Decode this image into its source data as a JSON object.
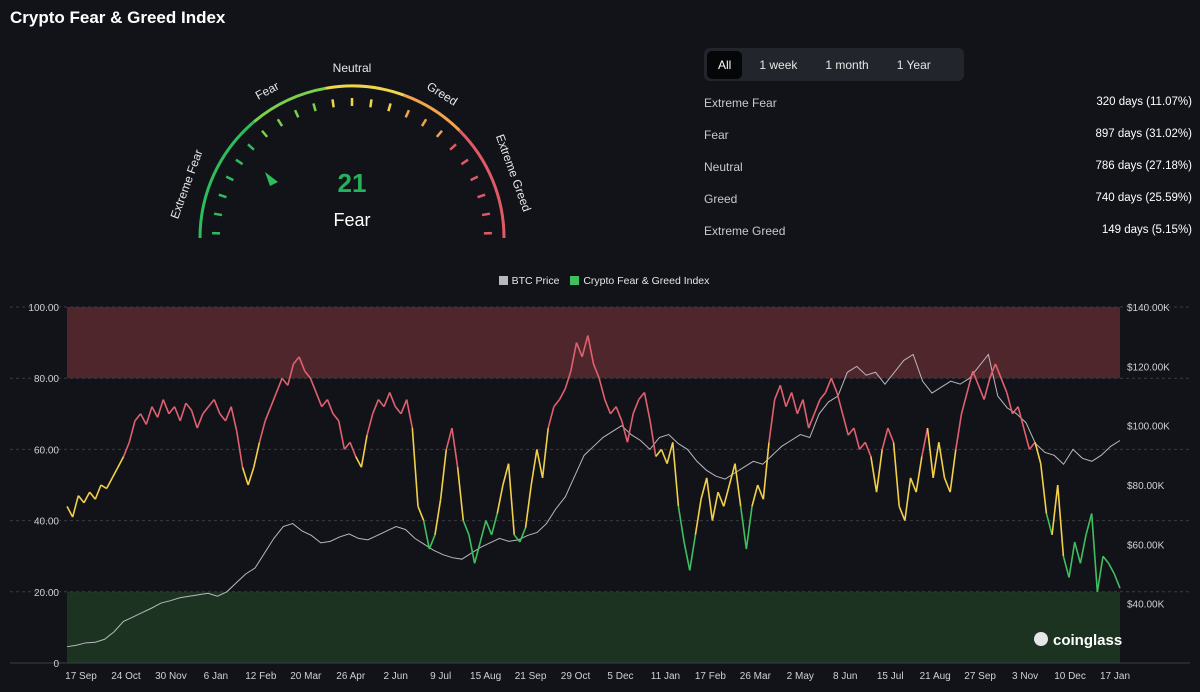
{
  "page": {
    "title": "Crypto Fear & Greed Index"
  },
  "gauge": {
    "value": "21",
    "classification": "Fear",
    "zones": [
      "Extreme Fear",
      "Fear",
      "Neutral",
      "Greed",
      "Extreme Greed"
    ],
    "colors": {
      "extreme_fear": "#2ebd5d",
      "fear": "#7ccf4a",
      "neutral": "#f0d54a",
      "greed": "#f2a34c",
      "extreme_greed": "#e05a66"
    }
  },
  "range_tabs": [
    "All",
    "1 week",
    "1 month",
    "1 Year"
  ],
  "active_tab": "All",
  "stats": [
    {
      "label": "Extreme Fear",
      "value": "320 days (11.07%)"
    },
    {
      "label": "Fear",
      "value": "897 days (31.02%)"
    },
    {
      "label": "Neutral",
      "value": "786 days (27.18%)"
    },
    {
      "label": "Greed",
      "value": "740 days (25.59%)"
    },
    {
      "label": "Extreme Greed",
      "value": "149 days (5.15%)"
    }
  ],
  "legend": {
    "btc_price": "BTC Price",
    "index": "Crypto Fear & Greed Index"
  },
  "watermark": "coinglass",
  "chart_data": {
    "type": "line",
    "x_tick_labels": [
      "17 Sep",
      "24 Oct",
      "30 Nov",
      "6 Jan",
      "12 Feb",
      "20 Mar",
      "26 Apr",
      "2 Jun",
      "9 Jul",
      "15 Aug",
      "21 Sep",
      "29 Oct",
      "5 Dec",
      "11 Jan",
      "17 Feb",
      "26 Mar",
      "2 May",
      "8 Jun",
      "15 Jul",
      "21 Aug",
      "27 Sep",
      "3 Nov",
      "10 Dec",
      "17 Jan"
    ],
    "y_left_ticks": [
      "100.00",
      "80.00",
      "60.00",
      "40.00",
      "20.00",
      "0"
    ],
    "y_right_ticks": [
      "$140.00K",
      "$120.00K",
      "$100.00K",
      "$80.00K",
      "$60.00K",
      "$40.00K"
    ],
    "y_left_range": [
      0,
      100
    ],
    "y_right_range": [
      20000,
      140000
    ],
    "bands": [
      {
        "name": "Extreme Greed",
        "from": 80,
        "to": 100,
        "color": "#5a2a30"
      },
      {
        "name": "Extreme Fear",
        "from": 0,
        "to": 20,
        "color": "#1f3a25"
      }
    ],
    "line_colors": {
      "above_60": "#e06070",
      "between_40_60": "#f2d04a",
      "below_40": "#3fbf5f",
      "btc": "#b8b8bc"
    },
    "series": [
      {
        "name": "Crypto Fear & Greed Index",
        "values": [
          44,
          41,
          47,
          45,
          48,
          46,
          50,
          49,
          52,
          55,
          58,
          62,
          68,
          70,
          67,
          72,
          69,
          74,
          70,
          72,
          68,
          73,
          71,
          66,
          70,
          72,
          74,
          70,
          68,
          72,
          65,
          55,
          50,
          55,
          62,
          68,
          72,
          76,
          80,
          78,
          84,
          86,
          82,
          80,
          76,
          72,
          74,
          70,
          68,
          60,
          62,
          58,
          55,
          64,
          70,
          74,
          72,
          76,
          72,
          70,
          74,
          66,
          44,
          40,
          32,
          36,
          46,
          60,
          66,
          55,
          40,
          36,
          28,
          34,
          40,
          36,
          42,
          50,
          56,
          36,
          34,
          38,
          50,
          60,
          52,
          66,
          72,
          74,
          77,
          82,
          90,
          86,
          92,
          84,
          80,
          74,
          70,
          72,
          68,
          62,
          70,
          74,
          76,
          68,
          58,
          60,
          56,
          62,
          44,
          34,
          26,
          36,
          46,
          52,
          40,
          48,
          44,
          50,
          56,
          44,
          32,
          44,
          50,
          46,
          62,
          74,
          78,
          72,
          76,
          70,
          74,
          66,
          70,
          74,
          76,
          80,
          76,
          70,
          64,
          66,
          60,
          62,
          58,
          48,
          60,
          66,
          62,
          44,
          40,
          52,
          48,
          58,
          66,
          52,
          62,
          52,
          48,
          60,
          70,
          76,
          82,
          78,
          74,
          80,
          84,
          80,
          76,
          70,
          72,
          66,
          60,
          62,
          56,
          42,
          36,
          50,
          30,
          24,
          34,
          28,
          36,
          42,
          20,
          30,
          28,
          25,
          21
        ],
        "note": ""
      },
      {
        "name": "BTC Price",
        "values": [
          25500,
          26000,
          26800,
          27000,
          28000,
          30500,
          34000,
          35500,
          37000,
          38500,
          40200,
          41000,
          42000,
          42500,
          43000,
          43500,
          42500,
          44000,
          47000,
          50000,
          52000,
          57000,
          62000,
          66000,
          67000,
          64500,
          63000,
          60500,
          61000,
          62500,
          63500,
          62000,
          61500,
          63000,
          64500,
          66000,
          65000,
          62000,
          60000,
          58000,
          56500,
          55500,
          55000,
          57000,
          59000,
          60500,
          62000,
          61000,
          61500,
          63000,
          64000,
          67000,
          72000,
          76000,
          83000,
          90000,
          93000,
          96000,
          98000,
          100000,
          97000,
          95000,
          92000,
          96000,
          97000,
          94000,
          92000,
          88000,
          85000,
          83000,
          82000,
          84000,
          86000,
          88000,
          87000,
          90000,
          93000,
          95000,
          97000,
          96000,
          104000,
          108000,
          110000,
          118000,
          120000,
          117000,
          118000,
          114000,
          118000,
          122000,
          124000,
          115000,
          111000,
          113000,
          115000,
          114000,
          116000,
          120000,
          124000,
          110000,
          106000,
          104000,
          101000,
          94000,
          91000,
          90000,
          87000,
          92000,
          89000,
          88000,
          90000,
          93000,
          95000
        ],
        "note": ""
      }
    ]
  }
}
